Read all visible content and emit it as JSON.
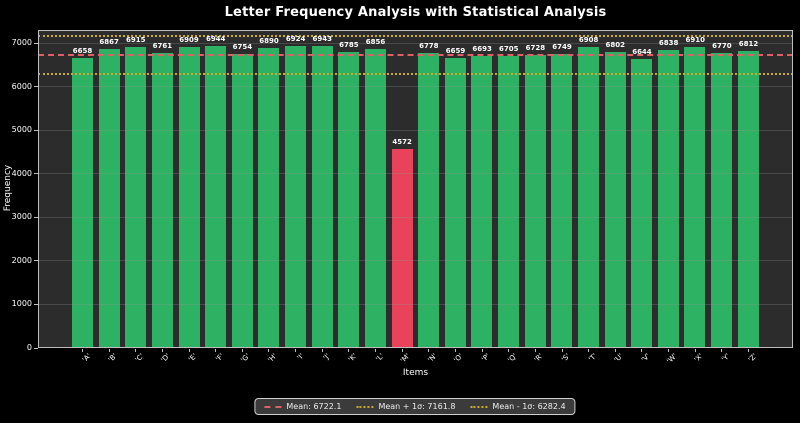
{
  "chart_data": {
    "type": "bar",
    "title": "Letter Frequency Analysis with Statistical Analysis",
    "xlabel": "Items",
    "ylabel": "Frequency",
    "categories": [
      "A",
      "B",
      "C",
      "D",
      "E",
      "F",
      "G",
      "H",
      "I",
      "J",
      "K",
      "L",
      "M",
      "N",
      "O",
      "P",
      "Q",
      "R",
      "S",
      "T",
      "U",
      "V",
      "W",
      "X",
      "Y",
      "Z"
    ],
    "xtick_labels": [
      "'A'",
      "'B'",
      "'C'",
      "'D'",
      "'E'",
      "'F'",
      "'G'",
      "'H'",
      "'I'",
      "'J'",
      "'K'",
      "'L'",
      "'M'",
      "'N'",
      "'O'",
      "'P'",
      "'Q'",
      "'R'",
      "'S'",
      "'T'",
      "'U'",
      "'V'",
      "'W'",
      "'X'",
      "'Y'",
      "'Z'"
    ],
    "values": [
      6658,
      6867,
      6915,
      6761,
      6909,
      6944,
      6754,
      6890,
      6924,
      6943,
      6785,
      6856,
      4572,
      6778,
      6659,
      6693,
      6705,
      6728,
      6749,
      6908,
      6802,
      6644,
      6838,
      6910,
      6770,
      6812
    ],
    "outlier_index": 12,
    "ylim": [
      0,
      7300
    ],
    "yticks": [
      0,
      1000,
      2000,
      3000,
      4000,
      5000,
      6000,
      7000
    ],
    "grid": true,
    "legend_position": "bottom-center",
    "stat_lines": [
      {
        "label": "Mean: 6722.1",
        "value": 6722.1,
        "style": "dashed",
        "color": "#de5f66"
      },
      {
        "label": "Mean + 1σ: 7161.8",
        "value": 7161.8,
        "style": "dotted",
        "color": "#c9ac2a"
      },
      {
        "label": "Mean - 1σ: 6282.4",
        "value": 6282.4,
        "style": "dotted",
        "color": "#c9ac2a"
      }
    ],
    "colors": {
      "bar": "#2db264",
      "outlier_bar": "#e8435a",
      "figure_background": "#000000",
      "axes_background": "#2c2c2c",
      "spine": "#bdbdbd",
      "text": "#ffffff"
    }
  }
}
